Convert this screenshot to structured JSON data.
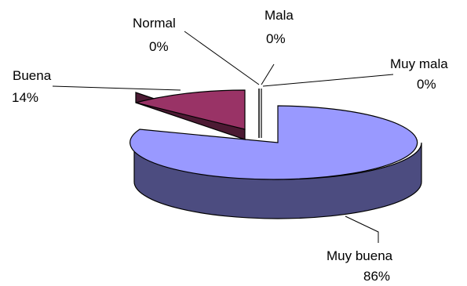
{
  "chart_data": {
    "type": "pie",
    "three_d": true,
    "exploded": true,
    "slices": [
      {
        "label": "Muy buena",
        "value_label": "86%",
        "value": 86,
        "color": "#9999ff"
      },
      {
        "label": "Buena",
        "value_label": "14%",
        "value": 14,
        "color": "#993366"
      },
      {
        "label": "Normal",
        "value_label": "0%",
        "value": 0,
        "color": "#ffffcc"
      },
      {
        "label": "Mala",
        "value_label": "0%",
        "value": 0,
        "color": "#ccffff"
      },
      {
        "label": "Muy mala",
        "value_label": "0%",
        "value": 0,
        "color": "#660066"
      }
    ]
  }
}
